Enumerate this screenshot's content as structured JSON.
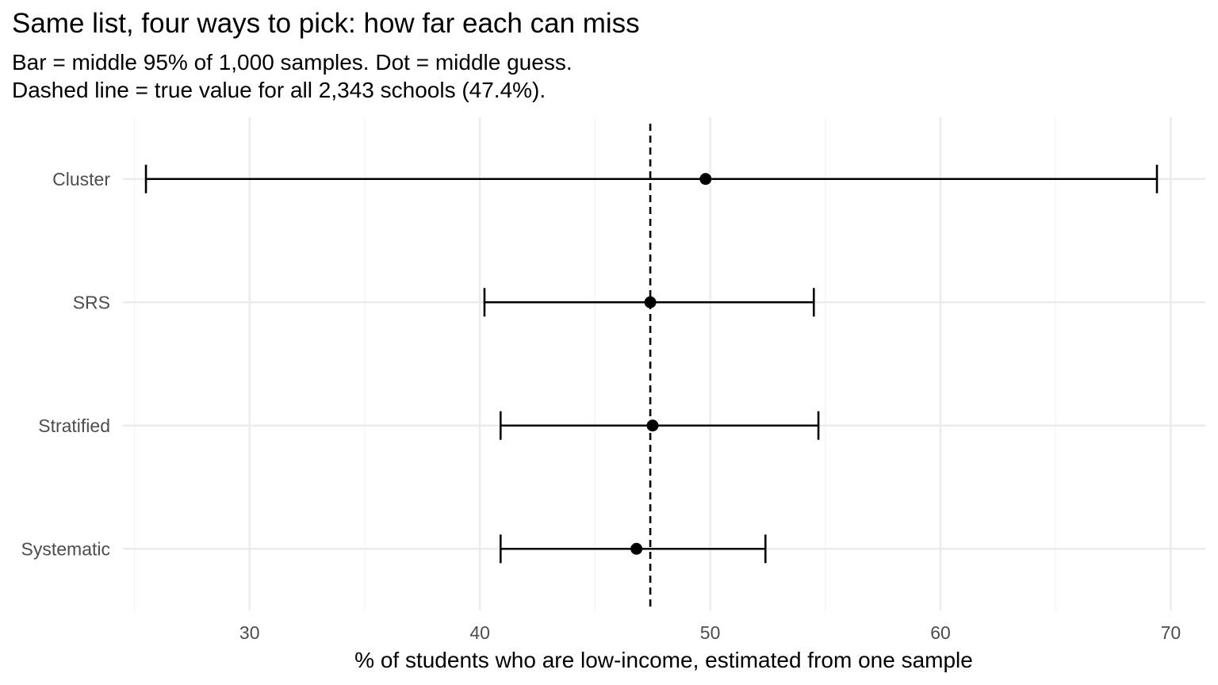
{
  "chart_data": {
    "type": "errorbar",
    "title": "Same list, four ways to pick: how far each can miss",
    "subtitle_lines": [
      "Bar = middle 95% of 1,000 samples. Dot = middle guess.",
      "Dashed line = true value for all 2,343 schools (47.4%)."
    ],
    "xlabel": "% of students who are low-income, estimated from one sample",
    "ylabel": "",
    "xlim": [
      24.5,
      71.5
    ],
    "x_ticks": [
      30,
      40,
      50,
      60,
      70
    ],
    "reference_line": {
      "x": 47.4,
      "style": "dashed"
    },
    "categories": [
      "Systematic",
      "Stratified",
      "SRS",
      "Cluster"
    ],
    "series": [
      {
        "category": "Systematic",
        "low": 40.9,
        "mid": 46.8,
        "high": 52.4
      },
      {
        "category": "Stratified",
        "low": 40.9,
        "mid": 47.5,
        "high": 54.7
      },
      {
        "category": "SRS",
        "low": 40.2,
        "mid": 47.4,
        "high": 54.5
      },
      {
        "category": "Cluster",
        "low": 25.5,
        "mid": 49.8,
        "high": 69.4
      }
    ],
    "grid": true,
    "colors": {
      "mark": "#000000",
      "grid_major": "#ebebeb",
      "grid_minor": "#f4f4f4"
    }
  }
}
